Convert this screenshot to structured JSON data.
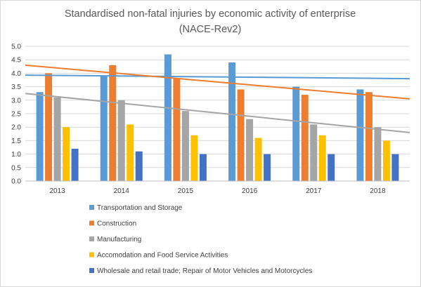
{
  "chart_data": {
    "type": "bar",
    "title_line1": "Standardised non-fatal injuries by economic activity of enterprise",
    "title_line2": "(NACE-Rev2)",
    "categories": [
      "2013",
      "2014",
      "2015",
      "2016",
      "2017",
      "2018"
    ],
    "ylim": [
      0,
      5
    ],
    "yticks": [
      "0.0",
      "0.5",
      "1.0",
      "1.5",
      "2.0",
      "2.5",
      "3.0",
      "3.5",
      "4.0",
      "4.5",
      "5.0"
    ],
    "grid": true,
    "legend_position": "bottom",
    "series": [
      {
        "name": "Transportation and Storage",
        "color": "#5b9bd5",
        "values": [
          3.3,
          3.9,
          4.7,
          4.4,
          3.5,
          3.4
        ]
      },
      {
        "name": "Construction",
        "color": "#ed7d31",
        "values": [
          4.0,
          4.3,
          3.8,
          3.4,
          3.2,
          3.3
        ]
      },
      {
        "name": "Manufacturing",
        "color": "#a5a5a5",
        "values": [
          3.1,
          3.0,
          2.6,
          2.3,
          2.1,
          2.0
        ]
      },
      {
        "name": "Accomodation and Food Service Activities",
        "color": "#ffc000",
        "values": [
          2.0,
          2.1,
          1.7,
          1.6,
          1.7,
          1.5
        ]
      },
      {
        "name": "Wholesale and retail trade; Repair of Motor Vehicles and Motorcycles",
        "color": "#4472c4",
        "values": [
          1.2,
          1.1,
          1.0,
          1.0,
          1.0,
          1.0
        ]
      }
    ],
    "trendlines": [
      {
        "series": "Transportation and Storage",
        "color": "#5b9bd5",
        "start": 3.93,
        "end": 3.8
      },
      {
        "series": "Construction",
        "color": "#ed7d31",
        "start": 4.3,
        "end": 3.05
      },
      {
        "series": "Manufacturing",
        "color": "#a5a5a5",
        "start": 3.25,
        "end": 1.8
      }
    ]
  }
}
